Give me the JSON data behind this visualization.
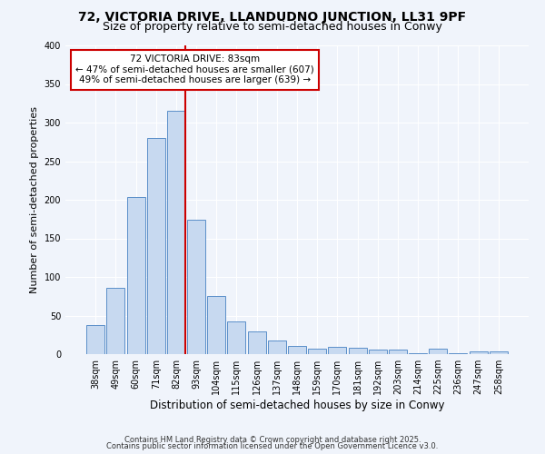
{
  "title": "72, VICTORIA DRIVE, LLANDUDNO JUNCTION, LL31 9PF",
  "subtitle": "Size of property relative to semi-detached houses in Conwy",
  "xlabel": "Distribution of semi-detached houses by size in Conwy",
  "ylabel": "Number of semi-detached properties",
  "bar_labels": [
    "38sqm",
    "49sqm",
    "60sqm",
    "71sqm",
    "82sqm",
    "93sqm",
    "104sqm",
    "115sqm",
    "126sqm",
    "137sqm",
    "148sqm",
    "159sqm",
    "170sqm",
    "181sqm",
    "192sqm",
    "203sqm",
    "214sqm",
    "225sqm",
    "236sqm",
    "247sqm",
    "258sqm"
  ],
  "bar_values": [
    38,
    86,
    204,
    280,
    315,
    174,
    75,
    42,
    29,
    18,
    11,
    7,
    9,
    8,
    6,
    6,
    1,
    7,
    1,
    3,
    4
  ],
  "bar_color": "#c7d9f0",
  "bar_edge_color": "#5b8fc9",
  "vline_color": "#cc0000",
  "annotation_title": "72 VICTORIA DRIVE: 83sqm",
  "annotation_line1": "← 47% of semi-detached houses are smaller (607)",
  "annotation_line2": "49% of semi-detached houses are larger (639) →",
  "annotation_box_color": "#ffffff",
  "annotation_box_edge": "#cc0000",
  "ylim": [
    0,
    400
  ],
  "yticks": [
    0,
    50,
    100,
    150,
    200,
    250,
    300,
    350,
    400
  ],
  "footer1": "Contains HM Land Registry data © Crown copyright and database right 2025.",
  "footer2": "Contains public sector information licensed under the Open Government Licence v3.0.",
  "bg_color": "#f0f4fb",
  "plot_bg_color": "#f0f4fb",
  "grid_color": "#ffffff",
  "title_fontsize": 10,
  "subtitle_fontsize": 9,
  "tick_fontsize": 7,
  "ylabel_fontsize": 8,
  "xlabel_fontsize": 8.5,
  "footer_fontsize": 6,
  "ann_fontsize": 7.5
}
